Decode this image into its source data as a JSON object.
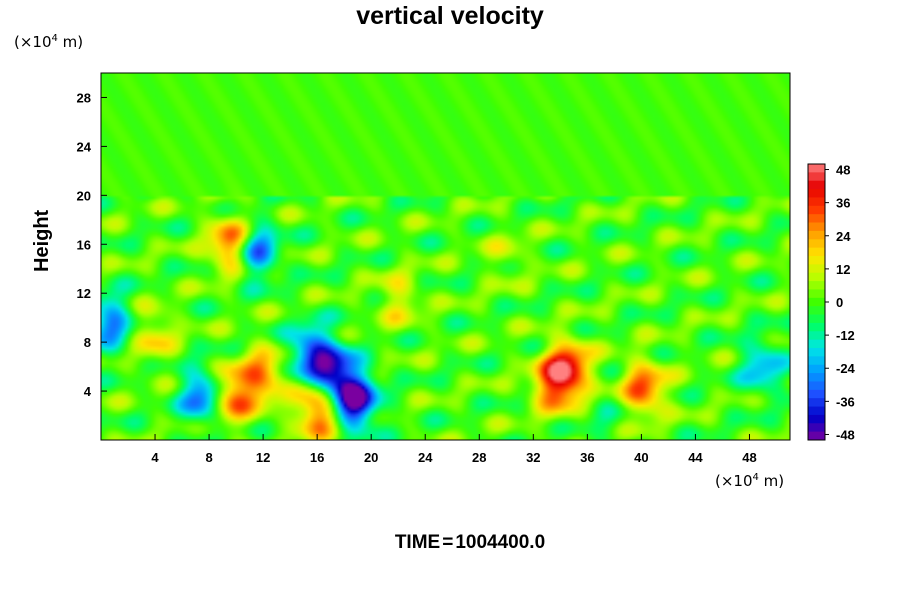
{
  "chart_data": {
    "type": "heatmap",
    "title": "vertical velocity",
    "ylabel": "Height",
    "y_unit": {
      "prefix": "(×10",
      "exp": "4",
      "suffix": " m)"
    },
    "x_unit": {
      "prefix": "(×10",
      "exp": "4",
      "suffix": " m)"
    },
    "xlim": [
      0,
      51
    ],
    "ylim": [
      0,
      30
    ],
    "x_ticks": [
      4,
      8,
      12,
      16,
      20,
      24,
      28,
      32,
      36,
      40,
      44,
      48
    ],
    "y_ticks": [
      4,
      8,
      12,
      16,
      20,
      24,
      28
    ],
    "colorbar": {
      "range": [
        -50,
        50
      ],
      "ticks": [
        48,
        36,
        24,
        12,
        0,
        -12,
        -24,
        -36,
        -48
      ],
      "stops": [
        "#7a00a0",
        "#0000c8",
        "#1e50ff",
        "#00a0ff",
        "#00e6e6",
        "#00ff64",
        "#40ff00",
        "#b4ff00",
        "#ffe600",
        "#ffa000",
        "#ff3c00",
        "#e60000",
        "#ff8080"
      ]
    },
    "features": [
      {
        "x": 18.8,
        "y": 3.2,
        "value": -50
      },
      {
        "x": 17.2,
        "y": 5.5,
        "value": -40
      },
      {
        "x": 15.5,
        "y": 7.2,
        "value": -32
      },
      {
        "x": 7.6,
        "y": 3.6,
        "value": -34
      },
      {
        "x": 11.4,
        "y": 15.5,
        "value": -34
      },
      {
        "x": 0.7,
        "y": 9.6,
        "value": -28
      },
      {
        "x": 49.0,
        "y": 6.0,
        "value": -22
      },
      {
        "x": 37.5,
        "y": 1.6,
        "value": -6
      },
      {
        "x": 9.6,
        "y": 3.6,
        "value": 34
      },
      {
        "x": 12.0,
        "y": 5.2,
        "value": 28
      },
      {
        "x": 16.1,
        "y": 2.4,
        "value": 36
      },
      {
        "x": 9.7,
        "y": 16.0,
        "value": 36
      },
      {
        "x": 34.6,
        "y": 5.8,
        "value": 38
      },
      {
        "x": 33.5,
        "y": 4.5,
        "value": 28
      },
      {
        "x": 40.2,
        "y": 4.2,
        "value": 32
      },
      {
        "x": 3.9,
        "y": 8.5,
        "value": 16
      },
      {
        "x": 22.0,
        "y": 11.5,
        "value": 14
      },
      {
        "x": 30.0,
        "y": 15.0,
        "value": 8
      }
    ]
  },
  "time_label": {
    "prefix": "TIME",
    "eq": "=",
    "value": "1004400.0"
  }
}
